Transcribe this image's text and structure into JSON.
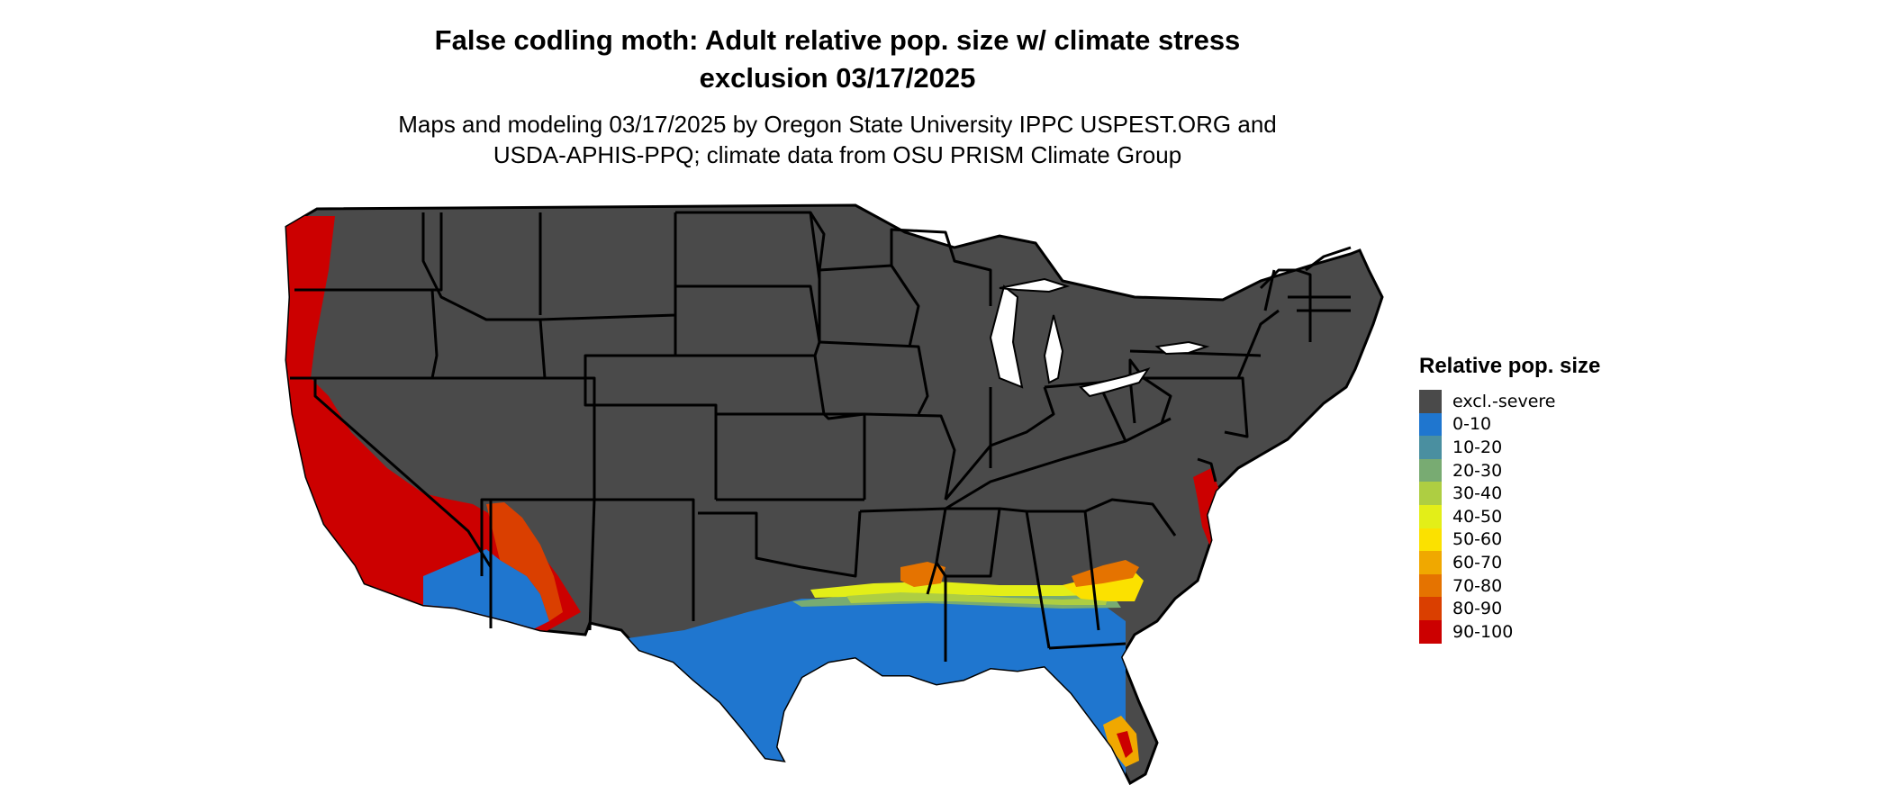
{
  "title_line1": "False codling moth: Adult relative pop. size w/ climate stress",
  "title_line2": "exclusion 03/17/2025",
  "subtitle_line1": "Maps and modeling 03/17/2025 by Oregon State University IPPC USPEST.ORG and",
  "subtitle_line2": "USDA-APHIS-PPQ; climate data from OSU PRISM Climate Group",
  "legend": {
    "title": "Relative pop. size",
    "items": [
      {
        "label": "excl.-severe",
        "color": "#4a4a4a"
      },
      {
        "label": "0-10",
        "color": "#1f76cf"
      },
      {
        "label": "10-20",
        "color": "#4a8fa0"
      },
      {
        "label": "20-30",
        "color": "#78ab72"
      },
      {
        "label": "30-40",
        "color": "#aece42"
      },
      {
        "label": "40-50",
        "color": "#e3ee18"
      },
      {
        "label": "50-60",
        "color": "#fbe100"
      },
      {
        "label": "60-70",
        "color": "#f0a800"
      },
      {
        "label": "70-80",
        "color": "#e57300"
      },
      {
        "label": "80-90",
        "color": "#da3f00"
      },
      {
        "label": "90-100",
        "color": "#cc0000"
      }
    ]
  }
}
